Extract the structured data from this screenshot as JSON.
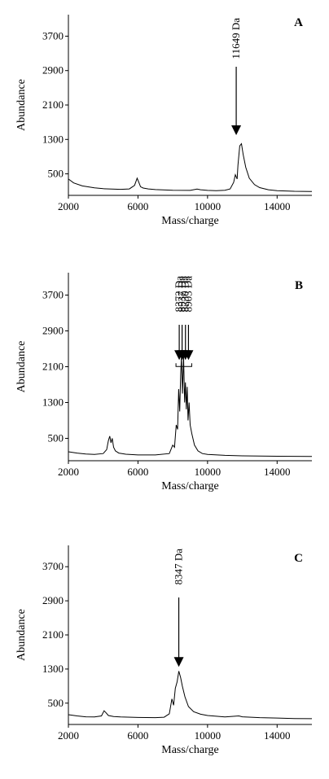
{
  "chart_data": [
    {
      "panel": "A",
      "type": "line",
      "xlabel": "Mass/charge",
      "ylabel": "Abundance",
      "xlim": [
        2000,
        16000
      ],
      "ylim": [
        0,
        4200
      ],
      "xticks": [
        2000,
        6000,
        10000,
        14000
      ],
      "yticks": [
        500,
        1300,
        2100,
        2900,
        3700
      ],
      "grid": false,
      "annotations": [
        {
          "label": "11649 Da",
          "x": 11649,
          "arrow_tip_y": 1400
        }
      ],
      "series": [
        {
          "x": [
            2000,
            2300,
            2800,
            3500,
            4000,
            4500,
            5000,
            5500,
            5800,
            5950,
            6050,
            6150,
            6300,
            6600,
            7000,
            8000,
            9000,
            9400,
            9600,
            10000,
            10500,
            11000,
            11300,
            11500,
            11600,
            11700,
            11750,
            11850,
            11950,
            12050,
            12200,
            12400,
            12700,
            13000,
            13500,
            14000,
            15000,
            16000
          ],
          "y": [
            380,
            290,
            220,
            175,
            155,
            145,
            140,
            150,
            230,
            400,
            300,
            200,
            170,
            150,
            135,
            120,
            115,
            145,
            130,
            115,
            110,
            120,
            150,
            300,
            480,
            380,
            700,
            1150,
            1200,
            950,
            650,
            400,
            250,
            180,
            130,
            110,
            95,
            90
          ]
        }
      ]
    },
    {
      "panel": "B",
      "type": "line",
      "xlabel": "Mass/charge",
      "ylabel": "Abundance",
      "xlim": [
        2000,
        16000
      ],
      "ylim": [
        0,
        4200
      ],
      "xticks": [
        2000,
        6000,
        10000,
        14000
      ],
      "yticks": [
        500,
        1300,
        2100,
        2900,
        3700
      ],
      "grid": false,
      "annotations": [
        {
          "label": "8372 Da",
          "x": 8372,
          "arrow_tip_y": 2250
        },
        {
          "label": "8537 Da",
          "x": 8537,
          "arrow_tip_y": 2250
        },
        {
          "label": "8730 Da",
          "x": 8730,
          "arrow_tip_y": 2250
        },
        {
          "label": "8903 Da",
          "x": 8903,
          "arrow_tip_y": 2250
        }
      ],
      "series": [
        {
          "x": [
            2000,
            2500,
            3000,
            3500,
            4000,
            4200,
            4300,
            4380,
            4450,
            4520,
            4600,
            4700,
            4900,
            5300,
            6000,
            7000,
            7800,
            8000,
            8100,
            8200,
            8280,
            8340,
            8400,
            8450,
            8500,
            8560,
            8620,
            8680,
            8730,
            8780,
            8830,
            8880,
            8940,
            9000,
            9100,
            9250,
            9450,
            9700,
            10000,
            11000,
            12000,
            14000,
            16000
          ],
          "y": [
            200,
            170,
            150,
            140,
            160,
            250,
            450,
            550,
            400,
            500,
            300,
            220,
            170,
            145,
            130,
            130,
            160,
            350,
            300,
            800,
            700,
            1600,
            1100,
            1900,
            2300,
            1500,
            2350,
            1300,
            1750,
            1150,
            1650,
            900,
            1300,
            800,
            600,
            350,
            220,
            160,
            140,
            120,
            110,
            100,
            95
          ]
        }
      ]
    },
    {
      "panel": "C",
      "type": "line",
      "xlabel": "Mass/charge",
      "ylabel": "Abundance",
      "xlim": [
        2000,
        16000
      ],
      "ylim": [
        0,
        4200
      ],
      "xticks": [
        2000,
        6000,
        10000,
        14000
      ],
      "yticks": [
        500,
        1300,
        2100,
        2900,
        3700
      ],
      "grid": false,
      "annotations": [
        {
          "label": "8347 Da",
          "x": 8347,
          "arrow_tip_y": 1350
        }
      ],
      "series": [
        {
          "x": [
            2000,
            2500,
            3000,
            3500,
            3900,
            4050,
            4150,
            4300,
            4600,
            5000,
            6000,
            7000,
            7500,
            7800,
            7950,
            8050,
            8150,
            8250,
            8350,
            8450,
            8550,
            8700,
            8900,
            9200,
            9600,
            10000,
            11000,
            11800,
            12000,
            13000,
            14000,
            15000,
            16000
          ],
          "y": [
            230,
            200,
            180,
            175,
            200,
            320,
            280,
            210,
            185,
            175,
            165,
            160,
            170,
            250,
            600,
            450,
            850,
            1000,
            1250,
            1100,
            900,
            650,
            420,
            300,
            240,
            210,
            175,
            200,
            180,
            160,
            150,
            140,
            135
          ]
        }
      ]
    }
  ]
}
